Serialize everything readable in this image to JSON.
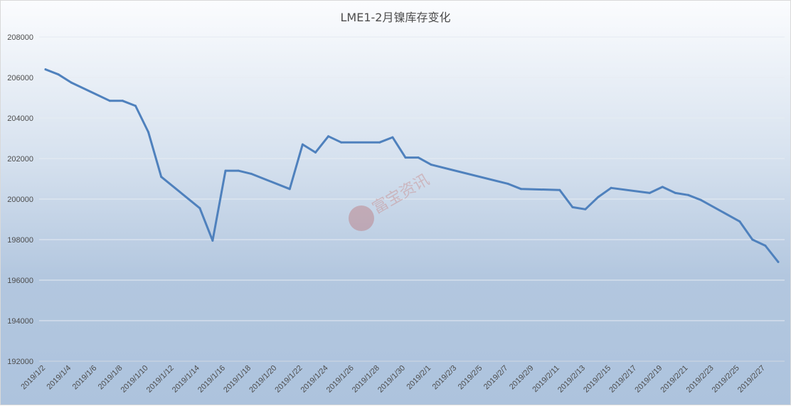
{
  "chart_data": {
    "type": "line",
    "title": "LME1-2月镍库存变化",
    "xlabel": "",
    "ylabel": "",
    "ylim": [
      192000,
      208000
    ],
    "yticks": [
      192000,
      194000,
      196000,
      198000,
      200000,
      202000,
      204000,
      206000,
      208000
    ],
    "grid": true,
    "legend": "none",
    "x": [
      "2019/1/2",
      "2019/1/3",
      "2019/1/4",
      "2019/1/7",
      "2019/1/8",
      "2019/1/9",
      "2019/1/10",
      "2019/1/11",
      "2019/1/14",
      "2019/1/15",
      "2019/1/16",
      "2019/1/17",
      "2019/1/18",
      "2019/1/21",
      "2019/1/22",
      "2019/1/23",
      "2019/1/24",
      "2019/1/25",
      "2019/1/28",
      "2019/1/29",
      "2019/1/30",
      "2019/1/31",
      "2019/2/1",
      "2019/2/7",
      "2019/2/8",
      "2019/2/11",
      "2019/2/12",
      "2019/2/13",
      "2019/2/14",
      "2019/2/15",
      "2019/2/18",
      "2019/2/19",
      "2019/2/20",
      "2019/2/21",
      "2019/2/22",
      "2019/2/25",
      "2019/2/26",
      "2019/2/27",
      "2019/2/28"
    ],
    "xticks": [
      "2019/1/2",
      "2019/1/4",
      "2019/1/6",
      "2019/1/8",
      "2019/1/10",
      "2019/1/12",
      "2019/1/14",
      "2019/1/16",
      "2019/1/18",
      "2019/1/20",
      "2019/1/22",
      "2019/1/24",
      "2019/1/26",
      "2019/1/28",
      "2019/1/30",
      "2019/2/1",
      "2019/2/3",
      "2019/2/5",
      "2019/2/7",
      "2019/2/9",
      "2019/2/11",
      "2019/2/13",
      "2019/2/15",
      "2019/2/17",
      "2019/2/19",
      "2019/2/21",
      "2019/2/23",
      "2019/2/25",
      "2019/2/27"
    ],
    "series": [
      {
        "color": "#4f81bd",
        "values": [
          206400,
          206150,
          205750,
          204850,
          204850,
          204600,
          203300,
          201100,
          199550,
          197950,
          201400,
          201400,
          201250,
          200500,
          202700,
          202300,
          203100,
          202800,
          202800,
          203050,
          202050,
          202050,
          201700,
          200750,
          200500,
          200450,
          199600,
          199500,
          200100,
          200550,
          200300,
          200600,
          200300,
          200200,
          199950,
          198900,
          198000,
          197700,
          196900
        ]
      }
    ],
    "start_date": "2019-01-02"
  },
  "watermark": {
    "text": "富宝资讯",
    "color": "#c98b8b"
  }
}
